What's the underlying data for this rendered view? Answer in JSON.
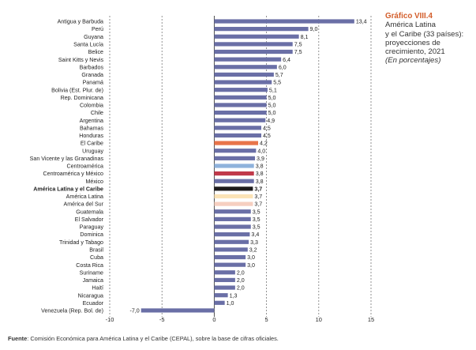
{
  "side": {
    "title": "Gráfico VIII.4",
    "line1": "América Latina",
    "line2": "y el Caribe (33 países):",
    "line3": "proyecciones de",
    "line4": "crecimiento, 2021",
    "note": "(En porcentajes)"
  },
  "source": {
    "label": "Fuente",
    "text": ": Comisión Económica para América Latina y el Caribe (CEPAL), sobre la base de cifras oficiales."
  },
  "colors": {
    "default": "#6a6fa6",
    "el_caribe": "#e8744a",
    "america_latina_y_el_caribe": "#1e1c1c",
    "centroamerica_y_mexico": "#c0394a",
    "centroamerica": "#8fb2dc",
    "america_latina": "#fbe3b6",
    "america_del_sur": "#f6cfc0"
  },
  "chart_data": {
    "type": "bar",
    "orientation": "horizontal",
    "xlim": [
      -10,
      15
    ],
    "xticks": [
      "-10",
      "-5",
      "0",
      "5",
      "10",
      "15"
    ],
    "grid": "vertical dashed at ticks",
    "categories": [
      "Antigua y Barbuda",
      "Perú",
      "Guyana",
      "Santa Lucía",
      "Belice",
      "Saint Kitts y Nevis",
      "Barbados",
      "Granada",
      "Panamá",
      "Bolivia (Est. Plur. de)",
      "Rep. Dominicana",
      "Colombia",
      "Chile",
      "Argentina",
      "Bahamas",
      "Honduras",
      "El Caribe",
      "Uruguay",
      "San Vicente y las Granadinas",
      "Centroamérica",
      "Centroamérica y México",
      "México",
      "América Latina y el Caribe",
      "América Latina",
      "América del Sur",
      "Guatemala",
      "El Salvador",
      "Paraguay",
      "Dominica",
      "Trinidad y Tabago",
      "Brasil",
      "Cuba",
      "Costa Rica",
      "Suriname",
      "Jamaica",
      "Haití",
      "Nicaragua",
      "Ecuador",
      "Venezuela (Rep. Bol. de)"
    ],
    "values": [
      13.4,
      9.0,
      8.1,
      7.5,
      7.5,
      6.4,
      6.0,
      5.7,
      5.5,
      5.1,
      5.0,
      5.0,
      5.0,
      4.9,
      4.5,
      4.5,
      4.2,
      4.0,
      3.9,
      3.8,
      3.8,
      3.8,
      3.7,
      3.7,
      3.7,
      3.5,
      3.5,
      3.5,
      3.4,
      3.3,
      3.2,
      3.0,
      3.0,
      2.0,
      2.0,
      2.0,
      1.3,
      1.0,
      -7.0
    ],
    "value_labels": [
      "13,4",
      "9,0",
      "8,1",
      "7,5",
      "7,5",
      "6,4",
      "6,0",
      "5,7",
      "5,5",
      "5,1",
      "5,0",
      "5,0",
      "5,0",
      "4,9",
      "4,5",
      "4,5",
      "4,2",
      "4,0",
      "3,9",
      "3,8",
      "3,8",
      "3,8",
      "3,7",
      "3,7",
      "3,7",
      "3,5",
      "3,5",
      "3,5",
      "3,4",
      "3,3",
      "3,2",
      "3,0",
      "3,0",
      "2,0",
      "2,0",
      "2,0",
      "1,3",
      "1,0",
      "-7,0"
    ],
    "bar_color_keys": [
      "default",
      "default",
      "default",
      "default",
      "default",
      "default",
      "default",
      "default",
      "default",
      "default",
      "default",
      "default",
      "default",
      "default",
      "default",
      "default",
      "el_caribe",
      "default",
      "default",
      "centroamerica",
      "centroamerica_y_mexico",
      "default",
      "america_latina_y_el_caribe",
      "america_latina",
      "america_del_sur",
      "default",
      "default",
      "default",
      "default",
      "default",
      "default",
      "default",
      "default",
      "default",
      "default",
      "default",
      "default",
      "default",
      "default"
    ],
    "bold_labels": [
      "América Latina y el Caribe"
    ]
  }
}
